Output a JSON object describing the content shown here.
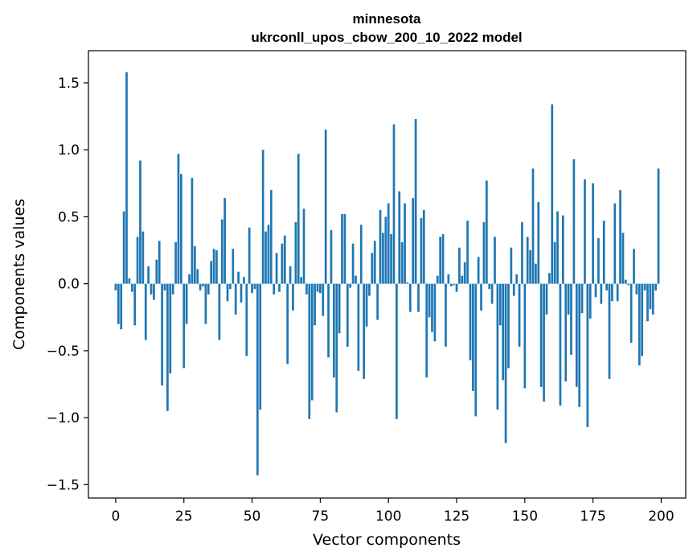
{
  "chart_data": {
    "type": "bar",
    "title": "minnesota",
    "subtitle": "ukrconll_upos_cbow_200_10_2022 model",
    "xlabel": "Vector components",
    "ylabel": "Components values",
    "xlim": [
      -10,
      209
    ],
    "ylim": [
      -1.6,
      1.74
    ],
    "xticks": [
      0,
      25,
      50,
      75,
      100,
      125,
      150,
      175,
      200
    ],
    "yticks": [
      -1.5,
      -1.0,
      -0.5,
      0.0,
      0.5,
      1.0,
      1.5
    ],
    "ytick_labels": [
      "−1.5",
      "−1.0",
      "−0.5",
      "0.0",
      "0.5",
      "1.0",
      "1.5"
    ],
    "bar_color": "#1f77b4",
    "values": [
      -0.05,
      -0.3,
      -0.34,
      0.54,
      1.58,
      0.04,
      -0.06,
      -0.31,
      0.35,
      0.92,
      0.39,
      -0.42,
      0.13,
      -0.08,
      -0.12,
      0.18,
      0.32,
      -0.76,
      -0.05,
      -0.95,
      -0.67,
      -0.08,
      0.31,
      0.97,
      0.82,
      -0.63,
      -0.3,
      0.07,
      0.79,
      0.28,
      0.11,
      -0.05,
      -0.02,
      -0.3,
      -0.08,
      0.17,
      0.26,
      0.25,
      -0.42,
      0.48,
      0.64,
      -0.13,
      -0.04,
      0.26,
      -0.23,
      0.09,
      -0.14,
      0.05,
      -0.54,
      0.42,
      -0.07,
      -0.04,
      -1.43,
      -0.94,
      1.0,
      0.39,
      0.44,
      0.7,
      -0.08,
      0.23,
      -0.06,
      0.3,
      0.36,
      -0.6,
      0.13,
      -0.2,
      0.46,
      0.97,
      0.05,
      0.56,
      -0.08,
      -1.01,
      -0.87,
      -0.31,
      -0.06,
      -0.07,
      -0.24,
      1.15,
      -0.55,
      0.4,
      -0.7,
      -0.96,
      -0.37,
      0.52,
      0.52,
      -0.47,
      -0.03,
      0.3,
      0.06,
      -0.65,
      0.44,
      -0.71,
      -0.32,
      -0.09,
      0.23,
      0.32,
      -0.27,
      0.55,
      0.38,
      0.5,
      0.6,
      0.37,
      1.19,
      -1.01,
      0.69,
      0.31,
      0.6,
      0.01,
      -0.21,
      0.64,
      1.23,
      -0.21,
      0.49,
      0.55,
      -0.7,
      -0.25,
      -0.36,
      -0.43,
      0.06,
      0.35,
      0.37,
      -0.47,
      0.07,
      -0.02,
      -0.01,
      -0.06,
      0.27,
      0.06,
      0.16,
      0.47,
      -0.57,
      -0.8,
      -0.99,
      0.2,
      -0.2,
      0.46,
      0.77,
      -0.04,
      -0.15,
      0.35,
      -0.94,
      -0.31,
      -0.72,
      -1.19,
      -0.63,
      0.27,
      -0.09,
      0.07,
      -0.47,
      0.46,
      -0.78,
      0.35,
      0.25,
      0.86,
      0.15,
      0.61,
      -0.77,
      -0.88,
      -0.23,
      0.08,
      1.34,
      0.31,
      0.54,
      -0.91,
      0.51,
      -0.73,
      -0.23,
      -0.53,
      0.93,
      -0.77,
      -0.92,
      -0.22,
      0.78,
      -1.07,
      -0.26,
      0.75,
      -0.1,
      0.34,
      -0.15,
      0.47,
      -0.05,
      -0.71,
      -0.13,
      0.6,
      -0.13,
      0.7,
      0.38,
      0.03,
      -0.01,
      -0.44,
      0.26,
      -0.08,
      -0.61,
      -0.54,
      -0.05,
      -0.28,
      -0.19,
      -0.23,
      -0.05,
      0.86
    ]
  }
}
